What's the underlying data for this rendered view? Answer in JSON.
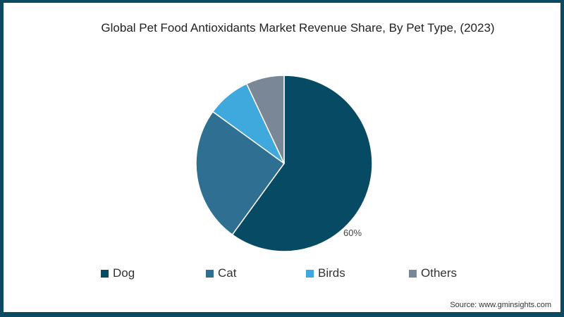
{
  "chart_data": {
    "type": "pie",
    "title": "Global Pet Food Antioxidants Market Revenue Share, By Pet Type, (2023)",
    "categories": [
      "Dog",
      "Cat",
      "Birds",
      "Others"
    ],
    "values": [
      60,
      25,
      8,
      7
    ],
    "colors": [
      "#074a63",
      "#2f6f91",
      "#3fa8dc",
      "#7a8797"
    ],
    "data_labels": [
      "60%",
      "",
      "",
      ""
    ],
    "legend_position": "bottom",
    "start_angle": "12 o'clock, clockwise"
  },
  "title": "Global Pet Food Antioxidants Market Revenue Share, By Pet Type, (2023)",
  "legend": [
    {
      "label": "Dog",
      "color": "#074a63"
    },
    {
      "label": "Cat",
      "color": "#2f6f91"
    },
    {
      "label": "Birds",
      "color": "#3fa8dc"
    },
    {
      "label": "Others",
      "color": "#7a8797"
    }
  ],
  "dog_label": "60%",
  "source": "Source: www.gminsights.com"
}
